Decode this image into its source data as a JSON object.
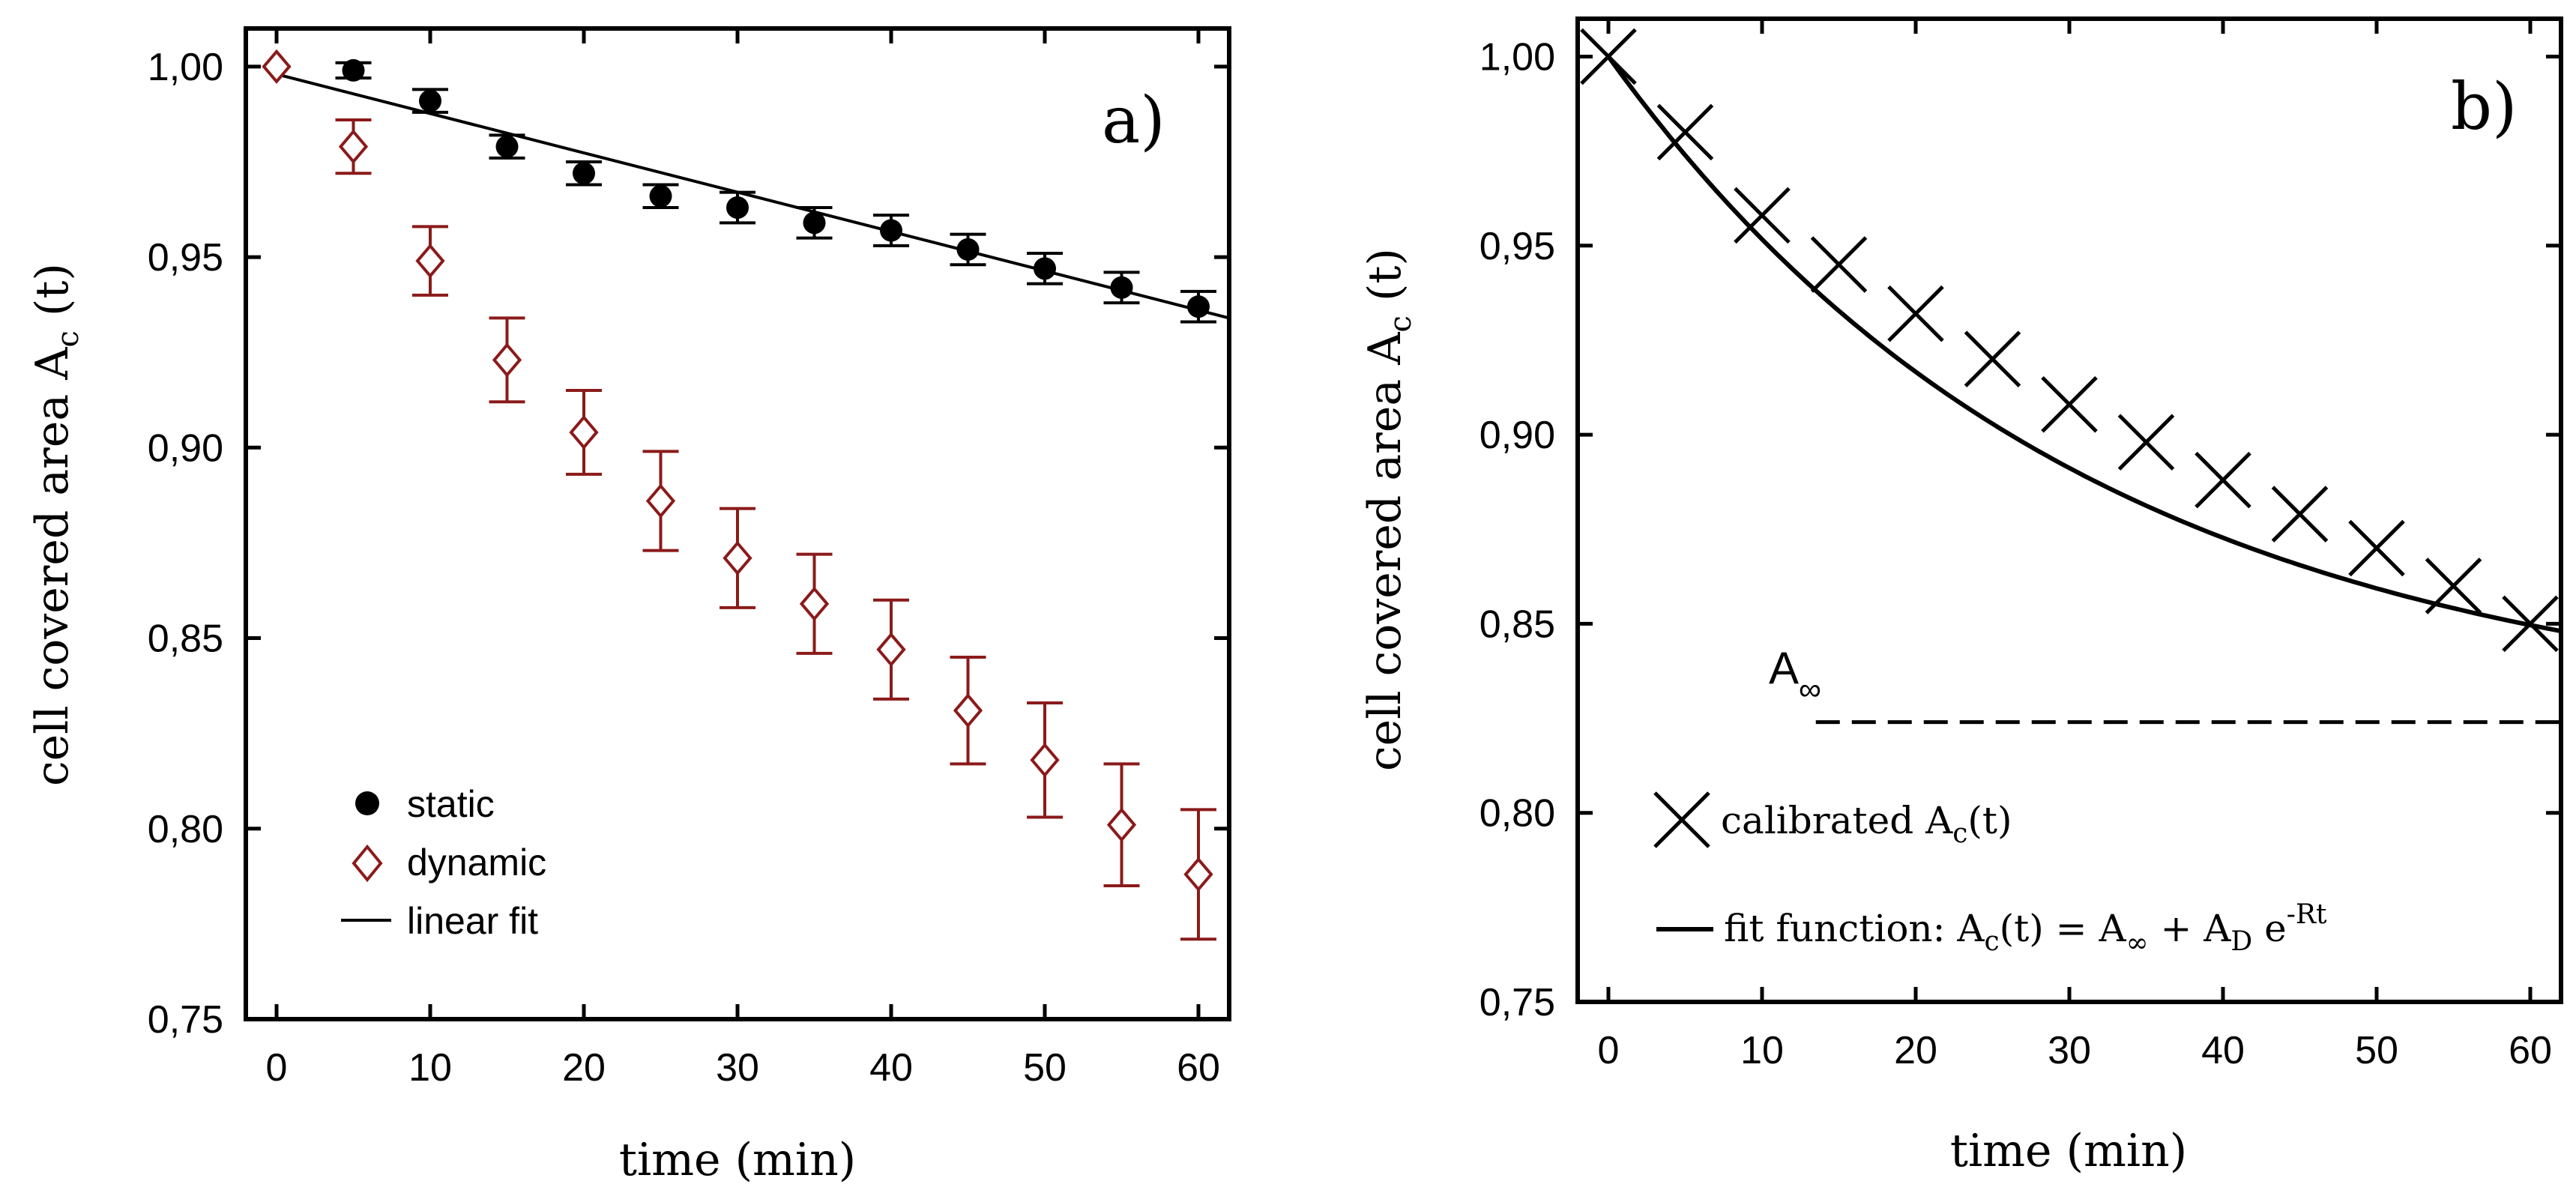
{
  "chart_data": [
    {
      "type": "scatter",
      "panel_label": "a)",
      "xlabel": "time (min)",
      "ylabel_main": "cell covered area A",
      "ylabel_sub": "c",
      "ylabel_tail": " (t)",
      "xlim": [
        -2,
        62
      ],
      "ylim": [
        0.75,
        1.01
      ],
      "xticks": [
        0,
        10,
        20,
        30,
        40,
        50,
        60
      ],
      "xtick_labels": [
        "0",
        "10",
        "20",
        "30",
        "40",
        "50",
        "60"
      ],
      "yticks": [
        0.75,
        0.8,
        0.85,
        0.9,
        0.95,
        1.0
      ],
      "ytick_labels": [
        "0,75",
        "0,80",
        "0,85",
        "0,90",
        "0,95",
        "1,00"
      ],
      "legend_position": "bottom-left",
      "series": [
        {
          "name": "static",
          "marker": "circle",
          "color": "#000000",
          "x": [
            0,
            5,
            10,
            15,
            20,
            25,
            30,
            35,
            40,
            45,
            50,
            55,
            60
          ],
          "y": [
            1.0,
            0.999,
            0.991,
            0.979,
            0.972,
            0.966,
            0.963,
            0.959,
            0.957,
            0.952,
            0.947,
            0.942,
            0.937
          ],
          "err": [
            0.0,
            0.002,
            0.003,
            0.003,
            0.003,
            0.003,
            0.004,
            0.004,
            0.004,
            0.004,
            0.004,
            0.004,
            0.004
          ]
        },
        {
          "name": "dynamic",
          "marker": "diamond",
          "color": "#8b1a1a",
          "x": [
            0,
            5,
            10,
            15,
            20,
            25,
            30,
            35,
            40,
            45,
            50,
            55,
            60
          ],
          "y": [
            1.0,
            0.979,
            0.949,
            0.923,
            0.904,
            0.886,
            0.871,
            0.859,
            0.847,
            0.831,
            0.818,
            0.801,
            0.788
          ],
          "err": [
            0.0,
            0.007,
            0.009,
            0.011,
            0.011,
            0.013,
            0.013,
            0.013,
            0.013,
            0.014,
            0.015,
            0.016,
            0.017
          ]
        },
        {
          "name": "linear fit",
          "type": "line",
          "color": "#000000",
          "x": [
            0,
            62
          ],
          "y": [
            0.998,
            0.934
          ]
        }
      ]
    },
    {
      "type": "scatter",
      "panel_label": "b)",
      "xlabel": "time (min)",
      "ylabel_main": "cell covered area A",
      "ylabel_sub": "c",
      "ylabel_tail": " (t)",
      "xlim": [
        -2,
        62
      ],
      "ylim": [
        0.75,
        1.01
      ],
      "xticks": [
        0,
        10,
        20,
        30,
        40,
        50,
        60
      ],
      "xtick_labels": [
        "0",
        "10",
        "20",
        "30",
        "40",
        "50",
        "60"
      ],
      "yticks": [
        0.75,
        0.8,
        0.85,
        0.9,
        0.95,
        1.0
      ],
      "ytick_labels": [
        "0,75",
        "0,80",
        "0,85",
        "0,90",
        "0,95",
        "1,00"
      ],
      "legend_position": "bottom-left",
      "asymptote": {
        "label_main": "A",
        "label_sub": "∞",
        "y": 0.824,
        "x_start": 13.5,
        "x_end": 62
      },
      "series": [
        {
          "name": "calibrated A_c(t)",
          "legend_main": "calibrated A",
          "legend_sub": "c",
          "legend_tail": "(t)",
          "marker": "cross",
          "color": "#000000",
          "x": [
            0,
            5,
            10,
            15,
            20,
            25,
            30,
            35,
            40,
            45,
            50,
            55,
            60
          ],
          "y": [
            1.0,
            0.98,
            0.958,
            0.945,
            0.932,
            0.92,
            0.908,
            0.898,
            0.888,
            0.879,
            0.87,
            0.86,
            0.85
          ]
        },
        {
          "name": "fit function",
          "legend_text": "fit function: A",
          "legend_eq_1": "c",
          "legend_eq_2": "(t) = A",
          "legend_eq_3": "∞",
          "legend_eq_4": " + A",
          "legend_eq_5": "D",
          "legend_eq_6": " e",
          "legend_eq_7": "-Rt",
          "type": "line",
          "color": "#000000",
          "a_inf": 0.824,
          "a_d": 0.176,
          "rate": 0.0321
        }
      ]
    }
  ]
}
